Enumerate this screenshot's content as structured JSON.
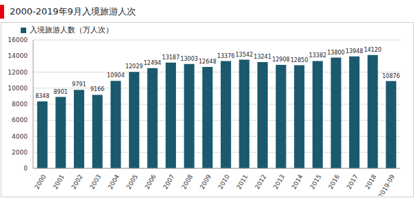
{
  "chart_data": {
    "type": "bar",
    "title": "2000-2019年9月入境旅游人次",
    "categories": [
      "2000",
      "2001",
      "2002",
      "2003",
      "2004",
      "2005",
      "2006",
      "2007",
      "2008",
      "2009",
      "2010",
      "2011",
      "2012",
      "2013",
      "2014",
      "2015",
      "2016",
      "2017",
      "2018",
      "2019-09"
    ],
    "series": [
      {
        "name": "入境旅游人数（万人次）",
        "color": "#1b5a6e",
        "values": [
          8348,
          8901,
          9791,
          9166,
          10904,
          12029,
          12494,
          13187,
          13003,
          12648,
          13376,
          13542,
          13241,
          12908,
          12850,
          13382,
          13800,
          13948,
          14120,
          10876
        ]
      }
    ],
    "ylim": [
      0,
      16000
    ],
    "yticks": [
      0,
      2000,
      4000,
      6000,
      8000,
      10000,
      12000,
      14000,
      16000
    ],
    "grid": true,
    "legend": "top-left",
    "data_labels": true
  }
}
